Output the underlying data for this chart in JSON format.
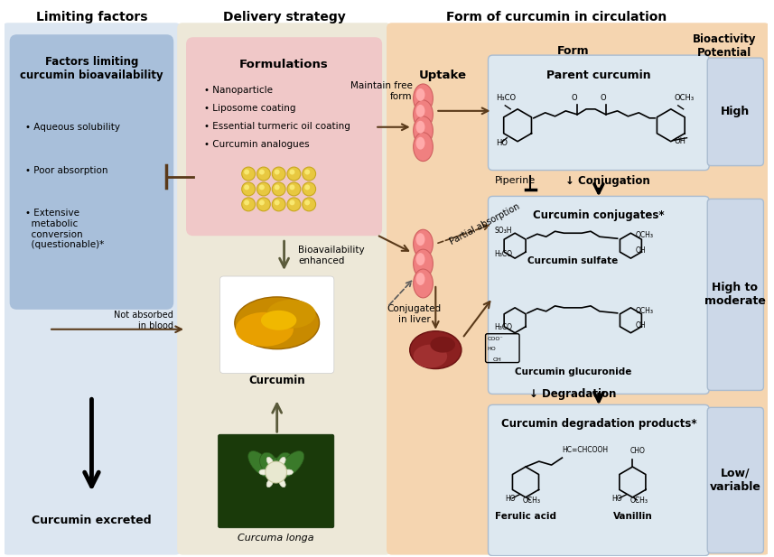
{
  "title_left": "Limiting factors",
  "title_mid": "Delivery strategy",
  "title_right": "Form of curcumin in circulation",
  "bg_left": "#dce6f1",
  "bg_mid": "#ede8d8",
  "bg_right": "#f5d5b0",
  "box_blue_dark": "#a8bfda",
  "box_pink": "#f0c8c8",
  "box_bioact_blue": "#ccd8e8",
  "factors_title": "Factors limiting\ncurcumin bioavailability",
  "factors_bullets": [
    "• Aqueous solubility",
    "• Poor absorption",
    "• Extensive\n  metabolic\n  conversion\n  (questionable)*"
  ],
  "excreted_text": "Curcumin excreted",
  "formulations_title": "Formulations",
  "formulations_bullets": [
    "• Nanoparticle",
    "• Liposome coating",
    "• Essential turmeric oil coating",
    "• Curcumin analogues"
  ],
  "bioavail_text": "Bioavailability\nenhanced",
  "not_absorbed_text": "Not absorbed\nin blood",
  "curcumin_label": "Curcumin",
  "curcuma_label": "Curcuma longa",
  "uptake_text": "Uptake",
  "maintain_text": "Maintain free\nform",
  "partial_text": "Partial absorption",
  "conjugated_text": "Conjugated\nin liver",
  "form_col_text": "Form",
  "bioact_col_text": "Bioactivity\nPotential",
  "parent_title": "Parent curcumin",
  "high_text": "High",
  "piperine_text": "Piperine",
  "conjugation_text": "↓ Conjugation",
  "conjugates_title": "Curcumin conjugates*",
  "curcumin_sulfate": "Curcumin sulfate",
  "curcumin_glucuronide": "Curcumin glucuronide",
  "high_mod_text": "High to\nmoderate",
  "degradation_text": "↓ Degradation",
  "degradation_title": "Curcumin degradation products*",
  "ferulic_label": "Ferulic acid",
  "vanillin_label": "Vanillin",
  "low_var_text": "Low/\nvariable",
  "figsize": [
    8.57,
    6.17
  ],
  "dpi": 100
}
